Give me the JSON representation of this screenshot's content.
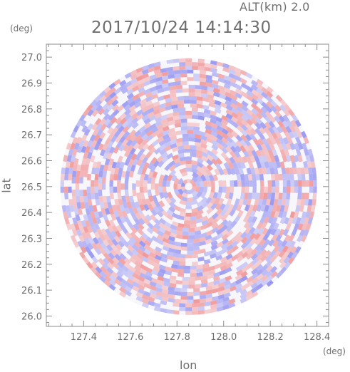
{
  "header": {
    "altitude_label": "ALT(km) 2.0",
    "timestamp": "2017/10/24 14:14:30"
  },
  "axes": {
    "y_unit": "(deg)",
    "x_unit": "(deg)",
    "xlabel": "lon",
    "ylabel": "lat"
  },
  "colors": {
    "positive": "#f08a8a",
    "negative": "#8a8af0",
    "axis": "#8c8c8c",
    "text": "#6e6e6e"
  },
  "chart_data": {
    "type": "heatmap",
    "description_kind": "radar PPI scan, diverging red-blue field inside circular range",
    "xlabel": "lon",
    "ylabel": "lat",
    "x_unit": "(deg)",
    "y_unit": "(deg)",
    "xlim": [
      127.24,
      128.45
    ],
    "ylim": [
      25.96,
      27.05
    ],
    "xticks": [
      127.4,
      127.6,
      127.8,
      128.0,
      128.2,
      128.4
    ],
    "xtick_labels": [
      "127.4",
      "127.6",
      "127.8",
      "128.0",
      "128.2",
      "128.4"
    ],
    "yticks": [
      26.0,
      26.1,
      26.2,
      26.3,
      26.4,
      26.5,
      26.6,
      26.7,
      26.8,
      26.9,
      27.0
    ],
    "ytick_labels": [
      "26.0",
      "26.1",
      "26.2",
      "26.3",
      "26.4",
      "26.5",
      "26.6",
      "26.7",
      "26.8",
      "26.9",
      "27.0"
    ],
    "minor_tick_step_x": 0.05,
    "minor_tick_step_y": 0.025,
    "radar_center": [
      127.85,
      26.5
    ],
    "radar_range_deg": 0.55,
    "grid": false
  }
}
